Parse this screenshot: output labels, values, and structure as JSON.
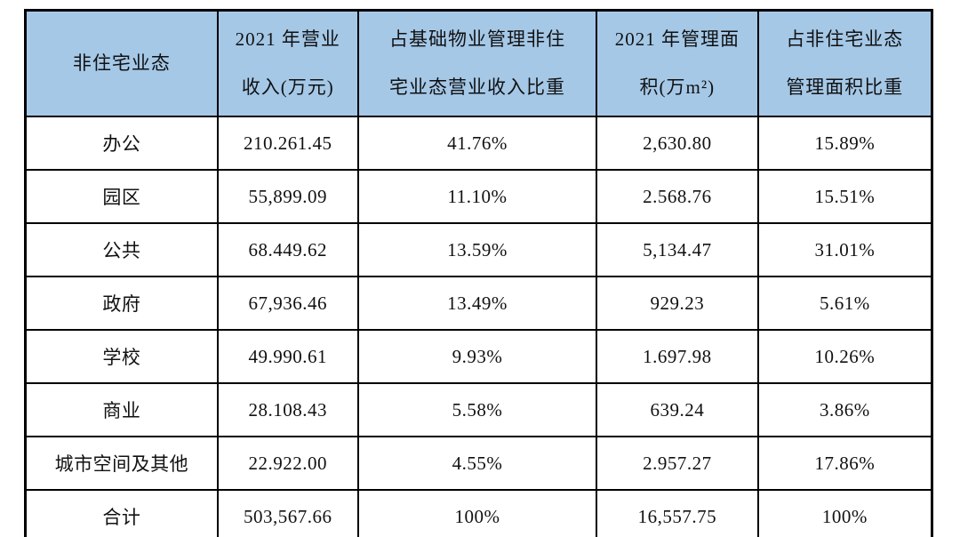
{
  "chart_data": {
    "type": "table",
    "title": "",
    "columns": [
      "非住宅业态",
      "2021 年营业收入(万元)",
      "占基础物业管理非住宅业态营业收入比重",
      "2021 年管理面积(万m²)",
      "占非住宅业态管理面积比重"
    ],
    "header_lines": [
      [
        "非住宅业态"
      ],
      [
        "2021 年营业",
        "收入(万元)"
      ],
      [
        "占基础物业管理非住",
        "宅业态营业收入比重"
      ],
      [
        "2021 年管理面",
        "积(万m²)"
      ],
      [
        "占非住宅业态",
        "管理面积比重"
      ]
    ],
    "rows": [
      [
        "办公",
        "210.261.45",
        "41.76%",
        "2,630.80",
        "15.89%"
      ],
      [
        "园区",
        "55,899.09",
        "11.10%",
        "2.568.76",
        "15.51%"
      ],
      [
        "公共",
        "68.449.62",
        "13.59%",
        "5,134.47",
        "31.01%"
      ],
      [
        "政府",
        "67,936.46",
        "13.49%",
        "929.23",
        "5.61%"
      ],
      [
        "学校",
        "49.990.61",
        "9.93%",
        "1.697.98",
        "10.26%"
      ],
      [
        "商业",
        "28.108.43",
        "5.58%",
        "639.24",
        "3.86%"
      ],
      [
        "城市空间及其他",
        "22.922.00",
        "4.55%",
        "2.957.27",
        "17.86%"
      ],
      [
        "合计",
        "503,567.66",
        "100%",
        "16,557.75",
        "100%"
      ]
    ],
    "column_widths_percent": [
      21.2,
      15.5,
      26.3,
      17.8,
      19.2
    ],
    "colors": {
      "header_bg": "#a5c8e7",
      "border": "#000000",
      "cell_bg": "#ffffff",
      "text": "#111111"
    },
    "layout": {
      "grid": "full-borders",
      "header_rows": 1,
      "body_rows": 8
    }
  }
}
